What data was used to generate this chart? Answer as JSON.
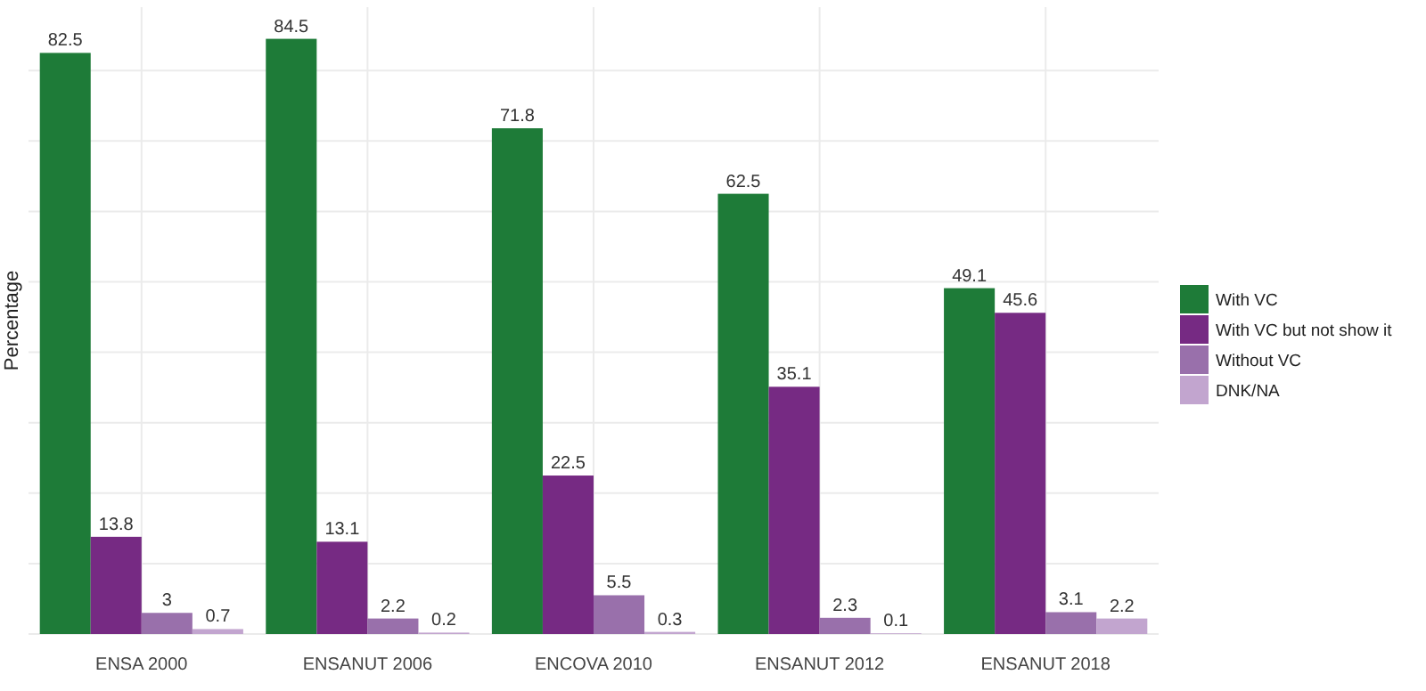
{
  "chart_data": {
    "type": "bar",
    "ylabel": "Percentage",
    "categories": [
      "ENSA 2000",
      "ENSANUT 2006",
      "ENCOVA 2010",
      "ENSANUT 2012",
      "ENSANUT 2018"
    ],
    "series": [
      {
        "name": "With VC",
        "color": "#1e7b38",
        "values": [
          82.5,
          84.5,
          71.8,
          62.5,
          49.1
        ]
      },
      {
        "name": "With VC but not show it",
        "color": "#762a83",
        "values": [
          13.8,
          13.1,
          22.5,
          35.1,
          45.6
        ]
      },
      {
        "name": "Without VC",
        "color": "#9970ab",
        "values": [
          3,
          2.2,
          5.5,
          2.3,
          3.1
        ]
      },
      {
        "name": "DNK/NA",
        "color": "#c2a5cf",
        "values": [
          0.7,
          0.2,
          0.3,
          0.1,
          2.2
        ]
      }
    ],
    "ylim": [
      0,
      89
    ],
    "yticks": [
      {
        "value": 0,
        "label": null
      },
      {
        "value": 10,
        "label": null
      },
      {
        "value": 20,
        "label": null
      },
      {
        "value": 30,
        "label": null
      },
      {
        "value": 40,
        "label": null
      },
      {
        "value": 50,
        "label": null
      },
      {
        "value": 60,
        "label": null
      },
      {
        "value": 70,
        "label": null
      },
      {
        "value": 80,
        "label": null
      }
    ],
    "tick_labels": "x",
    "grid": true,
    "legend": "right",
    "data_labels": true
  }
}
